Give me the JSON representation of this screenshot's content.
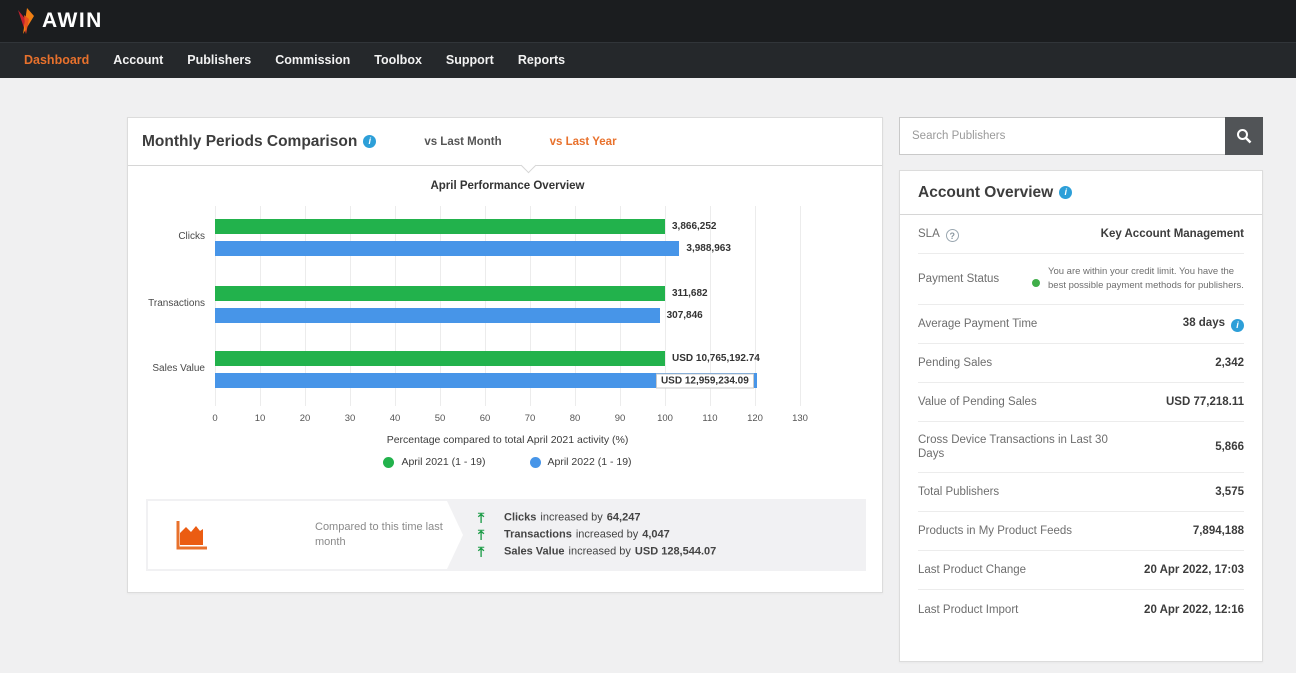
{
  "topbar": {
    "logo_text": "AWIN"
  },
  "nav": {
    "items": [
      {
        "label": "Dashboard",
        "active": true
      },
      {
        "label": "Account",
        "active": false
      },
      {
        "label": "Publishers",
        "active": false
      },
      {
        "label": "Commission",
        "active": false
      },
      {
        "label": "Toolbox",
        "active": false
      },
      {
        "label": "Support",
        "active": false
      },
      {
        "label": "Reports",
        "active": false
      }
    ]
  },
  "panel": {
    "title": "Monthly Periods Comparison",
    "tabs": [
      {
        "label": "vs Last Month",
        "active": false
      },
      {
        "label": "vs Last Year",
        "active": true
      }
    ]
  },
  "chart_data": {
    "type": "bar",
    "orientation": "horizontal",
    "title": "April Performance Overview",
    "categories": [
      "Clicks",
      "Transactions",
      "Sales Value"
    ],
    "series": [
      {
        "name": "April 2021 (1 - 19)",
        "color": "#22b24c",
        "value_labels": [
          "3,866,252",
          "311,682",
          "USD 10,765,192.74"
        ],
        "values_pct": [
          100,
          100,
          100
        ]
      },
      {
        "name": "April 2022 (1 - 19)",
        "color": "#4795e8",
        "value_labels": [
          "3,988,963",
          "307,846",
          "USD 12,959,234.09"
        ],
        "values_pct": [
          103.2,
          98.8,
          120.4
        ]
      }
    ],
    "xlabel": "Percentage compared to total April 2021 activity (%)",
    "xticks": [
      0,
      10,
      20,
      30,
      40,
      50,
      60,
      70,
      80,
      90,
      100,
      110,
      120,
      130
    ],
    "xlim": [
      0,
      130
    ],
    "grid": true,
    "legend_position": "bottom"
  },
  "comparison": {
    "label": "Compared to this time last month",
    "items": [
      {
        "metric": "Clicks",
        "mid": "increased by",
        "value": "64,247"
      },
      {
        "metric": "Transactions",
        "mid": "increased by",
        "value": "4,047"
      },
      {
        "metric": "Sales Value",
        "mid": "increased by",
        "value": "USD 128,544.07"
      }
    ]
  },
  "search": {
    "placeholder": "Search Publishers"
  },
  "account_overview": {
    "title": "Account Overview",
    "rows": [
      {
        "label": "SLA",
        "value": "Key Account Management"
      },
      {
        "label": "Payment Status",
        "value": "You are within your credit limit. You have the best possible payment methods for publishers."
      },
      {
        "label": "Average Payment Time",
        "value": "38 days"
      },
      {
        "label": "Pending Sales",
        "value": "2,342"
      },
      {
        "label": "Value of Pending Sales",
        "value": "USD 77,218.11"
      },
      {
        "label": "Cross Device Transactions in Last 30 Days",
        "value": "5,866"
      },
      {
        "label": "Total Publishers",
        "value": "3,575"
      },
      {
        "label": "Products in My Product Feeds",
        "value": "7,894,188"
      },
      {
        "label": "Last Product Change",
        "value": "20 Apr 2022, 17:03"
      },
      {
        "label": "Last Product Import",
        "value": "20 Apr 2022, 12:16"
      }
    ]
  },
  "colors": {
    "accent_orange": "#e8712c",
    "green": "#22b24c",
    "blue": "#4795e8",
    "info_blue": "#2d9fd8",
    "status_green": "#3fae49"
  }
}
